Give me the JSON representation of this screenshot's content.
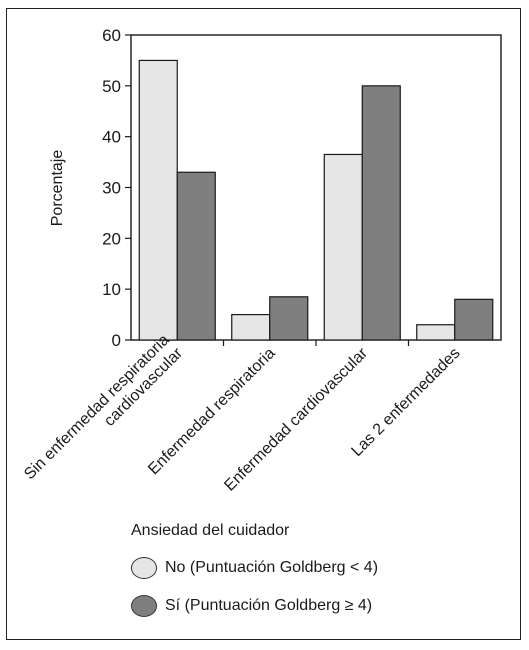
{
  "chart_data": {
    "type": "bar",
    "title": "",
    "xlabel": "",
    "ylabel": "Porcentaje",
    "ylim": [
      0,
      60
    ],
    "yticks": [
      "0",
      "10",
      "20",
      "30",
      "40",
      "50",
      "60"
    ],
    "categories": [
      [
        "Sin enfermedad respiratoria",
        "cardiovascular"
      ],
      [
        "Enfermedad respiratoria"
      ],
      [
        "Enfermedad cardiovascular"
      ],
      [
        "Las 2 enfermedades"
      ]
    ],
    "series": [
      {
        "name": "No (Puntuación Goldberg < 4)",
        "color": "#e6e6e6",
        "values": [
          55,
          5,
          36.5,
          3
        ]
      },
      {
        "name": "Sí (Puntuación Goldberg ≥ 4)",
        "color": "#7f7f7f",
        "values": [
          33,
          8.5,
          50,
          8
        ]
      }
    ],
    "grid": false,
    "legend_position": "bottom"
  },
  "legend": {
    "title": "Ansiedad del cuidador",
    "items": [
      {
        "label": "No (Puntuación Goldberg < 4)",
        "color": "#e6e6e6"
      },
      {
        "label": "Sí (Puntuación Goldberg ≥ 4)",
        "color": "#7f7f7f"
      }
    ]
  }
}
